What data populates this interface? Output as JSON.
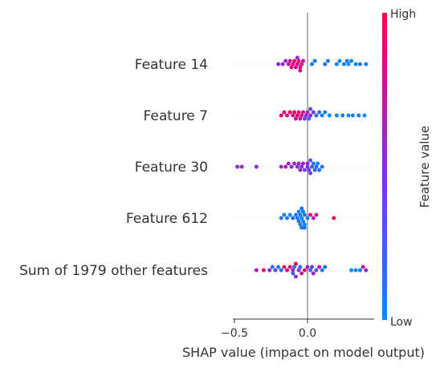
{
  "chart_data": {
    "type": "scatter",
    "title": "",
    "xlabel": "SHAP value (impact on model output)",
    "ylabel": "",
    "xlim": [
      -0.55,
      0.45
    ],
    "x_ticks": [
      {
        "value": -0.5,
        "label": "−0.5"
      },
      {
        "value": 0.0,
        "label": "0.0"
      }
    ],
    "zero_line": true,
    "colorbar": {
      "title": "Feature value",
      "high_label": "High",
      "low_label": "Low",
      "high_color": "#ff0052",
      "low_color": "#008bfb"
    },
    "features": [
      {
        "name": "Feature 14",
        "points": [
          {
            "x": -0.03,
            "v": 0.65
          },
          {
            "x": -0.05,
            "v": 0.7
          },
          {
            "x": -0.07,
            "v": 0.8
          },
          {
            "x": -0.08,
            "v": 0.75
          },
          {
            "x": -0.1,
            "v": 0.9
          },
          {
            "x": -0.11,
            "v": 0.85
          },
          {
            "x": -0.13,
            "v": 0.8
          },
          {
            "x": -0.15,
            "v": 0.6
          },
          {
            "x": -0.17,
            "v": 0.5
          },
          {
            "x": -0.2,
            "v": 0.55
          },
          {
            "x": -0.04,
            "v": 0.95
          },
          {
            "x": -0.06,
            "v": 0.9
          },
          {
            "x": -0.09,
            "v": 1.0
          },
          {
            "x": -0.12,
            "v": 0.7
          },
          {
            "x": -0.05,
            "v": 0.85
          },
          {
            "x": -0.07,
            "v": 0.6
          },
          {
            "x": 0.03,
            "v": 0.1
          },
          {
            "x": 0.05,
            "v": 0.05
          },
          {
            "x": 0.12,
            "v": 0.15
          },
          {
            "x": 0.14,
            "v": 0.1
          },
          {
            "x": 0.2,
            "v": 0.05
          },
          {
            "x": 0.22,
            "v": 0.0
          },
          {
            "x": 0.25,
            "v": 0.05
          },
          {
            "x": 0.27,
            "v": 0.1
          },
          {
            "x": 0.28,
            "v": 0.0
          },
          {
            "x": 0.3,
            "v": 0.05
          },
          {
            "x": 0.33,
            "v": 0.0
          },
          {
            "x": 0.36,
            "v": 0.1
          },
          {
            "x": 0.4,
            "v": 0.05
          }
        ]
      },
      {
        "name": "Feature 7",
        "points": [
          {
            "x": -0.18,
            "v": 0.95
          },
          {
            "x": -0.16,
            "v": 0.9
          },
          {
            "x": -0.14,
            "v": 0.85
          },
          {
            "x": -0.12,
            "v": 0.9
          },
          {
            "x": -0.1,
            "v": 0.7
          },
          {
            "x": -0.08,
            "v": 0.8
          },
          {
            "x": -0.07,
            "v": 0.95
          },
          {
            "x": -0.05,
            "v": 0.6
          },
          {
            "x": -0.03,
            "v": 0.75
          },
          {
            "x": -0.01,
            "v": 0.5
          },
          {
            "x": 0.02,
            "v": 0.55
          },
          {
            "x": 0.04,
            "v": 0.4
          },
          {
            "x": -0.06,
            "v": 0.85
          },
          {
            "x": -0.04,
            "v": 0.9
          },
          {
            "x": 0.0,
            "v": 0.7
          },
          {
            "x": -0.09,
            "v": 1.0
          },
          {
            "x": 0.06,
            "v": 0.2
          },
          {
            "x": 0.08,
            "v": 0.15
          },
          {
            "x": 0.1,
            "v": 0.1
          },
          {
            "x": 0.12,
            "v": 0.05
          },
          {
            "x": 0.15,
            "v": 0.0
          },
          {
            "x": 0.2,
            "v": 0.1
          },
          {
            "x": 0.24,
            "v": 0.05
          },
          {
            "x": 0.28,
            "v": 0.0
          },
          {
            "x": 0.31,
            "v": 0.1
          },
          {
            "x": 0.35,
            "v": 0.05
          },
          {
            "x": 0.39,
            "v": 0.0
          },
          {
            "x": 0.02,
            "v": 0.3
          },
          {
            "x": -0.02,
            "v": 0.45
          },
          {
            "x": 0.01,
            "v": 0.2
          }
        ]
      },
      {
        "name": "Feature 30",
        "points": [
          {
            "x": -0.48,
            "v": 0.55
          },
          {
            "x": -0.45,
            "v": 0.6
          },
          {
            "x": -0.35,
            "v": 0.55
          },
          {
            "x": -0.18,
            "v": 0.6
          },
          {
            "x": -0.15,
            "v": 0.65
          },
          {
            "x": -0.13,
            "v": 0.6
          },
          {
            "x": -0.11,
            "v": 0.55
          },
          {
            "x": -0.09,
            "v": 0.6
          },
          {
            "x": -0.07,
            "v": 0.5
          },
          {
            "x": -0.05,
            "v": 0.6
          },
          {
            "x": -0.03,
            "v": 0.55
          },
          {
            "x": -0.06,
            "v": 0.5
          },
          {
            "x": -0.04,
            "v": 0.45
          },
          {
            "x": -0.02,
            "v": 0.4
          },
          {
            "x": 0.0,
            "v": 0.5
          },
          {
            "x": 0.01,
            "v": 0.35
          },
          {
            "x": 0.02,
            "v": 0.3
          },
          {
            "x": 0.04,
            "v": 0.2
          },
          {
            "x": 0.05,
            "v": 0.25
          },
          {
            "x": 0.06,
            "v": 0.15
          },
          {
            "x": 0.08,
            "v": 0.1
          },
          {
            "x": 0.1,
            "v": 0.1
          },
          {
            "x": 0.03,
            "v": 0.2
          },
          {
            "x": 0.07,
            "v": 0.0
          },
          {
            "x": 0.0,
            "v": 0.55
          },
          {
            "x": 0.02,
            "v": 0.4
          }
        ]
      },
      {
        "name": "Feature 612",
        "points": [
          {
            "x": -0.18,
            "v": 0.1
          },
          {
            "x": -0.16,
            "v": 0.05
          },
          {
            "x": -0.14,
            "v": 0.1
          },
          {
            "x": -0.12,
            "v": 0.0
          },
          {
            "x": -0.1,
            "v": 0.15
          },
          {
            "x": -0.08,
            "v": 0.1
          },
          {
            "x": -0.07,
            "v": 0.05
          },
          {
            "x": -0.06,
            "v": 0.15
          },
          {
            "x": -0.05,
            "v": 0.1
          },
          {
            "x": -0.04,
            "v": 0.0
          },
          {
            "x": -0.03,
            "v": 0.1
          },
          {
            "x": -0.02,
            "v": 0.15
          },
          {
            "x": -0.06,
            "v": 0.05
          },
          {
            "x": -0.04,
            "v": 0.1
          },
          {
            "x": -0.03,
            "v": 0.05
          },
          {
            "x": -0.02,
            "v": 0.0
          },
          {
            "x": 0.0,
            "v": 0.1
          },
          {
            "x": -0.05,
            "v": 0.05
          },
          {
            "x": -0.04,
            "v": 0.15
          },
          {
            "x": -0.02,
            "v": 0.1
          },
          {
            "x": 0.02,
            "v": 0.9
          },
          {
            "x": 0.04,
            "v": 0.65
          },
          {
            "x": 0.06,
            "v": 0.8
          },
          {
            "x": 0.18,
            "v": 0.95
          },
          {
            "x": -0.03,
            "v": 0.05
          }
        ]
      },
      {
        "name": "Sum of 1979 other features",
        "points": [
          {
            "x": -0.35,
            "v": 0.6
          },
          {
            "x": -0.3,
            "v": 0.9
          },
          {
            "x": -0.26,
            "v": 0.5
          },
          {
            "x": -0.24,
            "v": 0.2
          },
          {
            "x": -0.22,
            "v": 0.3
          },
          {
            "x": -0.2,
            "v": 0.15
          },
          {
            "x": -0.18,
            "v": 0.1
          },
          {
            "x": -0.16,
            "v": 0.95
          },
          {
            "x": -0.14,
            "v": 0.85
          },
          {
            "x": -0.12,
            "v": 0.9
          },
          {
            "x": -0.1,
            "v": 0.6
          },
          {
            "x": -0.08,
            "v": 0.95
          },
          {
            "x": -0.06,
            "v": 0.4
          },
          {
            "x": -0.04,
            "v": 0.75
          },
          {
            "x": -0.02,
            "v": 0.9
          },
          {
            "x": 0.0,
            "v": 0.55
          },
          {
            "x": 0.02,
            "v": 0.2
          },
          {
            "x": 0.04,
            "v": 0.6
          },
          {
            "x": 0.06,
            "v": 0.3
          },
          {
            "x": 0.08,
            "v": 0.7
          },
          {
            "x": 0.1,
            "v": 0.1
          },
          {
            "x": 0.12,
            "v": 0.15
          },
          {
            "x": 0.3,
            "v": 0.0
          },
          {
            "x": 0.33,
            "v": 0.1
          },
          {
            "x": 0.36,
            "v": 0.05
          },
          {
            "x": 0.38,
            "v": 0.7
          },
          {
            "x": 0.4,
            "v": 0.6
          },
          {
            "x": -0.1,
            "v": 0.3
          },
          {
            "x": -0.08,
            "v": 0.5
          },
          {
            "x": -0.05,
            "v": 0.2
          },
          {
            "x": 0.03,
            "v": 0.4
          },
          {
            "x": -0.09,
            "v": 0.1
          }
        ]
      }
    ]
  }
}
